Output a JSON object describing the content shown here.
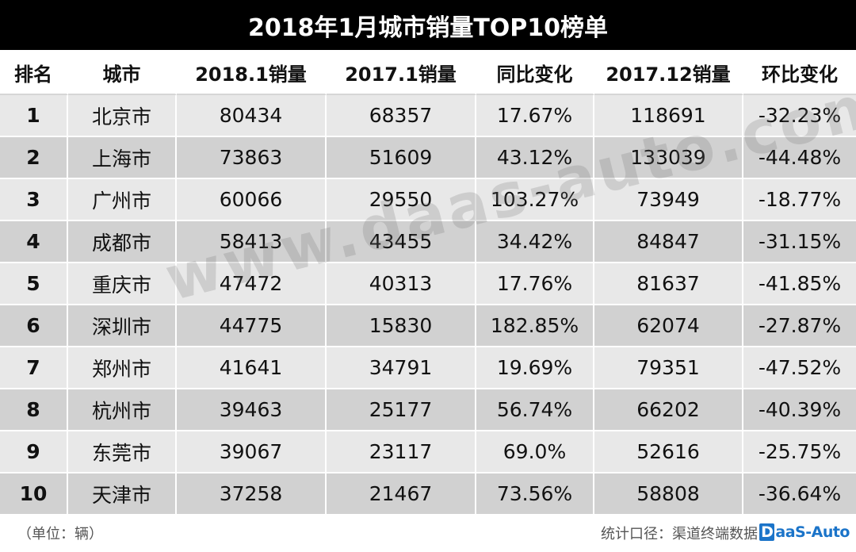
{
  "chart_data": {
    "type": "table",
    "title": "2018年1月城市销量TOP10榜单",
    "columns": [
      "排名",
      "城市",
      "2018.1销量",
      "2017.1销量",
      "同比变化",
      "2017.12销量",
      "环比变化"
    ],
    "rows": [
      [
        "1",
        "北京市",
        "80434",
        "68357",
        "17.67%",
        "118691",
        "-32.23%"
      ],
      [
        "2",
        "上海市",
        "73863",
        "51609",
        "43.12%",
        "133039",
        "-44.48%"
      ],
      [
        "3",
        "广州市",
        "60066",
        "29550",
        "103.27%",
        "73949",
        "-18.77%"
      ],
      [
        "4",
        "成都市",
        "58413",
        "43455",
        "34.42%",
        "84847",
        "-31.15%"
      ],
      [
        "5",
        "重庆市",
        "47472",
        "40313",
        "17.76%",
        "81637",
        "-41.85%"
      ],
      [
        "6",
        "深圳市",
        "44775",
        "15830",
        "182.85%",
        "62074",
        "-27.87%"
      ],
      [
        "7",
        "郑州市",
        "41641",
        "34791",
        "19.69%",
        "79351",
        "-47.52%"
      ],
      [
        "8",
        "杭州市",
        "39463",
        "25177",
        "56.74%",
        "66202",
        "-40.39%"
      ],
      [
        "9",
        "东莞市",
        "39067",
        "23117",
        "69.0%",
        "52616",
        "-25.75%"
      ],
      [
        "10",
        "天津市",
        "37258",
        "21467",
        "73.56%",
        "58808",
        "-36.64%"
      ]
    ]
  },
  "footer": {
    "unit": "（单位：辆）",
    "source": "统计口径：渠道终端数据"
  },
  "brand": {
    "logo_d": "D",
    "logo_rest": "aaS-Auto"
  },
  "watermark": "www.daas-auto.com",
  "colors": {
    "title_bg": "#000000",
    "row_light": "#e8e8e8",
    "row_dark": "#d1d1d1",
    "brand_blue": "#1b74c9"
  }
}
